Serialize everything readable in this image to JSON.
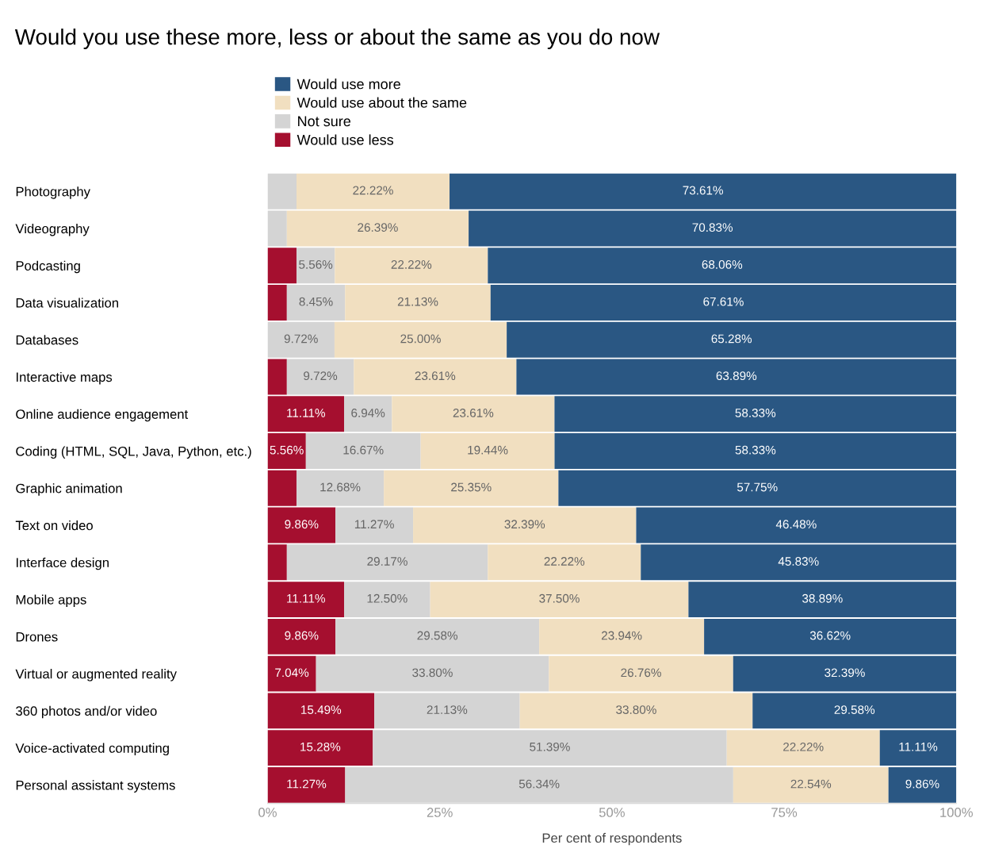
{
  "chart_data": {
    "type": "bar",
    "orientation": "horizontal",
    "stacked": true,
    "title": "Would you use these more, less or about the same as you do now",
    "xlabel": "Per cent of respondents",
    "categories": [
      "Photography",
      "Videography",
      "Podcasting",
      "Data visualization",
      "Databases",
      "Interactive maps",
      "Online audience engagement",
      "Coding (HTML, SQL, Java, Python, etc.)",
      "Graphic animation",
      "Text on video",
      "Interface design",
      "Mobile apps",
      "Drones",
      "Virtual or augmented reality",
      "360 photos and/or video",
      "Voice-activated computing",
      "Personal assistant systems"
    ],
    "series": [
      {
        "name": "Would use less",
        "color": "#a50f2f",
        "values": [
          null,
          null,
          4.2,
          2.8,
          null,
          2.8,
          11.11,
          5.56,
          4.2,
          9.86,
          2.8,
          11.11,
          9.86,
          7.04,
          15.49,
          15.28,
          11.27
        ],
        "value_labels": [
          null,
          null,
          null,
          null,
          null,
          null,
          "11.11%",
          "5.56%",
          null,
          "9.86%",
          null,
          "11.11%",
          "9.86%",
          "7.04%",
          "15.49%",
          "15.28%",
          "11.27%"
        ]
      },
      {
        "name": "Not sure",
        "color": "#d4d4d4",
        "values": [
          4.2,
          2.8,
          5.56,
          8.45,
          9.72,
          9.72,
          6.94,
          16.67,
          12.68,
          11.27,
          29.17,
          12.5,
          29.58,
          33.8,
          21.13,
          51.39,
          56.34
        ],
        "value_labels": [
          null,
          null,
          "5.56%",
          "8.45%",
          "9.72%",
          "9.72%",
          "6.94%",
          "16.67%",
          "12.68%",
          "11.27%",
          "29.17%",
          "12.50%",
          "29.58%",
          "33.80%",
          "21.13%",
          "51.39%",
          "56.34%"
        ]
      },
      {
        "name": "Would use about the same",
        "color": "#f1dfc0",
        "values": [
          22.22,
          26.39,
          22.22,
          21.13,
          25.0,
          23.61,
          23.61,
          19.44,
          25.35,
          32.39,
          22.22,
          37.5,
          23.94,
          26.76,
          33.8,
          22.22,
          22.54
        ],
        "value_labels": [
          "22.22%",
          "26.39%",
          "22.22%",
          "21.13%",
          "25.00%",
          "23.61%",
          "23.61%",
          "19.44%",
          "25.35%",
          "32.39%",
          "22.22%",
          "37.50%",
          "23.94%",
          "26.76%",
          "33.80%",
          "22.22%",
          "22.54%"
        ]
      },
      {
        "name": "Would use more",
        "color": "#2a5783",
        "values": [
          73.61,
          70.83,
          68.06,
          67.61,
          65.28,
          63.89,
          58.33,
          58.33,
          57.75,
          46.48,
          45.83,
          38.89,
          36.62,
          32.39,
          29.58,
          11.11,
          9.86
        ],
        "value_labels": [
          "73.61%",
          "70.83%",
          "68.06%",
          "67.61%",
          "65.28%",
          "63.89%",
          "58.33%",
          "58.33%",
          "57.75%",
          "46.48%",
          "45.83%",
          "38.89%",
          "36.62%",
          "32.39%",
          "29.58%",
          "11.11%",
          "9.86%"
        ]
      }
    ],
    "xlim": [
      0,
      100
    ],
    "xticks": [
      {
        "value": 0,
        "label": "0%"
      },
      {
        "value": 25,
        "label": "25%"
      },
      {
        "value": 50,
        "label": "50%"
      },
      {
        "value": 75,
        "label": "75%"
      },
      {
        "value": 100,
        "label": "100%"
      }
    ],
    "grid": false,
    "legend": "top left"
  }
}
